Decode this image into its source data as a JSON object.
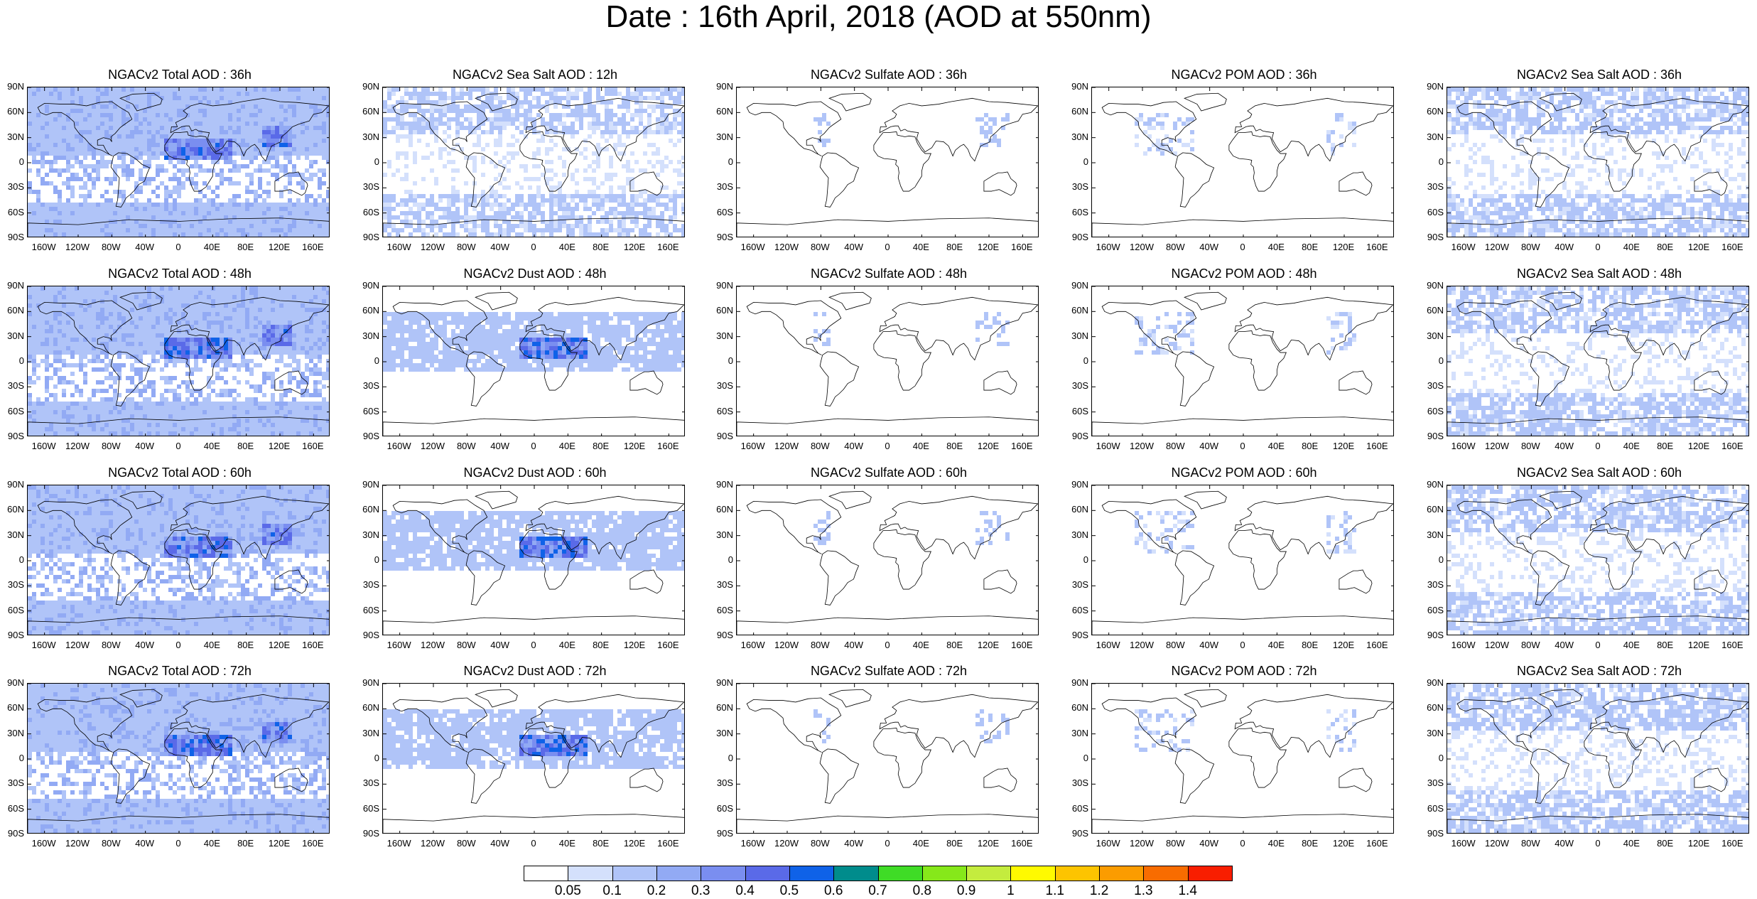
{
  "title": "Date : 16th April, 2018 (AOD at 550nm)",
  "panels": [
    [
      "NGACv2 Total AOD : 36h",
      "NGACv2 Sea Salt  AOD : 12h",
      "NGACv2 Sulfate AOD : 36h",
      "NGACv2 POM AOD : 36h",
      "NGACv2 Sea Salt  AOD : 36h"
    ],
    [
      "NGACv2 Total AOD : 48h",
      "NGACv2 Dust AOD : 48h",
      "NGACv2 Sulfate AOD : 48h",
      "NGACv2 POM AOD : 48h",
      "NGACv2 Sea Salt  AOD : 48h"
    ],
    [
      "NGACv2 Total AOD : 60h",
      "NGACv2 Dust AOD : 60h",
      "NGACv2 Sulfate AOD : 60h",
      "NGACv2 POM AOD : 60h",
      "NGACv2 Sea Salt  AOD : 60h"
    ],
    [
      "NGACv2 Total AOD : 72h",
      "NGACv2 Dust AOD : 72h",
      "NGACv2 Sulfate AOD : 72h",
      "NGACv2 POM AOD : 72h",
      "NGACv2 Sea Salt  AOD : 72h"
    ]
  ],
  "y_ticks": [
    "90N",
    "60N",
    "30N",
    "0",
    "30S",
    "60S",
    "90S"
  ],
  "x_ticks": [
    "160W",
    "120W",
    "80W",
    "40W",
    "0",
    "40E",
    "80E",
    "120E",
    "160E"
  ],
  "x_tick_values": [
    -160,
    -120,
    -80,
    -40,
    0,
    40,
    80,
    120,
    160
  ],
  "y_tick_values": [
    90,
    60,
    30,
    0,
    -30,
    -60,
    -90
  ],
  "colorbar": {
    "labels": [
      "0.05",
      "0.1",
      "0.2",
      "0.3",
      "0.4",
      "0.5",
      "0.6",
      "0.7",
      "0.8",
      "0.9",
      "1",
      "1.1",
      "1.2",
      "1.3",
      "1.4"
    ],
    "colors": [
      "#ffffff",
      "#d4e0fc",
      "#b0c4f8",
      "#92aaf4",
      "#7a8ef0",
      "#5a6ae8",
      "#0f62e8",
      "#008c8c",
      "#3fdc26",
      "#86e81a",
      "#c4ec3e",
      "#fffa00",
      "#fdc400",
      "#fb9c00",
      "#f86c00",
      "#f81e00"
    ]
  }
}
